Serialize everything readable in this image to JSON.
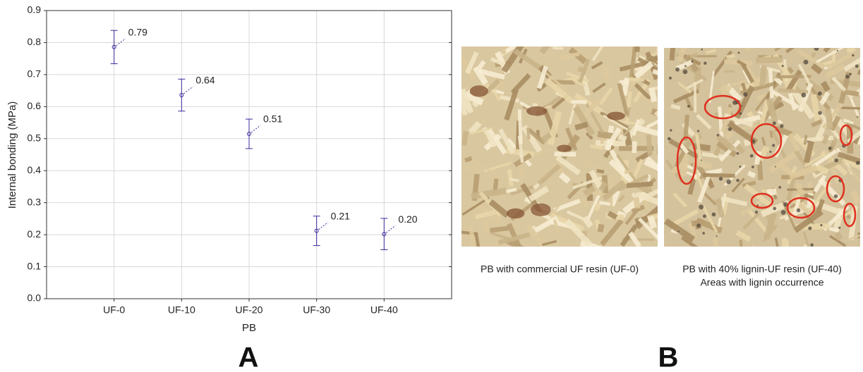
{
  "chart_data": {
    "type": "errorbar",
    "x_label": "PB",
    "y_label": "Internal bonding (MPa)",
    "categories": [
      "UF-0",
      "UF-10",
      "UF-20",
      "UF-30",
      "UF-40"
    ],
    "values": [
      0.786,
      0.636,
      0.515,
      0.212,
      0.202
    ],
    "value_labels": [
      "0.79",
      "0.64",
      "0.51",
      "0.21",
      "0.20"
    ],
    "errors": [
      0.052,
      0.05,
      0.046,
      0.046,
      0.049
    ],
    "color": "#3b2a9a",
    "ylim": [
      0,
      0.9
    ],
    "yticks": [
      {
        "value": 0,
        "label": "0.0"
      },
      0.1,
      0.2,
      0.3,
      0.4,
      0.5,
      0.6,
      0.7,
      0.8,
      0.9
    ],
    "grid": true
  },
  "panel_labels": [
    "A",
    "B"
  ],
  "photos": [
    {
      "caption": [
        "PB with commercial UF resin (UF-0)"
      ]
    },
    {
      "caption": [
        "PB with 40% lignin-UF resin (UF-40)",
        "Areas with lignin occurrence"
      ]
    }
  ]
}
